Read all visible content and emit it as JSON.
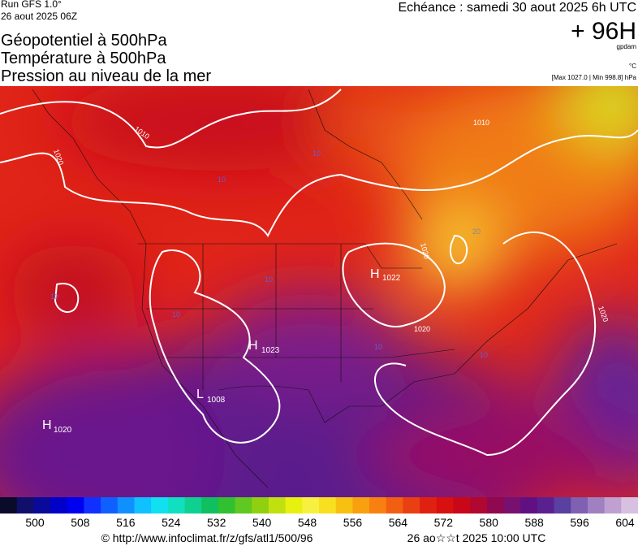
{
  "header": {
    "run": "Run GFS 1.0°",
    "date": "26 aout 2025 06Z",
    "titles": [
      "Géopotentiel à 500hPa",
      "Température à 500hPa",
      "Pression au niveau de la mer"
    ],
    "forecast": "Echéance : samedi 30 aout 2025 6h UTC",
    "lead": "+ 96H",
    "unit_gpdam": "gpdam",
    "unit_temp": "°C",
    "pressure_range": "[Max 1027.0 | Min 998.8] hPa"
  },
  "map": {
    "labels": [
      "1010",
      "1020",
      "10",
      "10",
      "1010",
      "20",
      "1020",
      "H",
      "1022",
      "10",
      "10",
      "10",
      "1020",
      "1020",
      "H",
      "1023",
      "10",
      "10",
      "L",
      "1008",
      "H",
      "1020"
    ]
  },
  "colorbar": {
    "ticks": [
      500,
      508,
      516,
      524,
      532,
      540,
      548,
      556,
      564,
      572,
      580,
      588,
      596,
      604
    ]
  },
  "footer": {
    "url": "© http://www.infoclimat.fr/z/gfs/atl1/500/96",
    "timestamp": "26 ao☆☆t 2025 10:00 UTC"
  }
}
